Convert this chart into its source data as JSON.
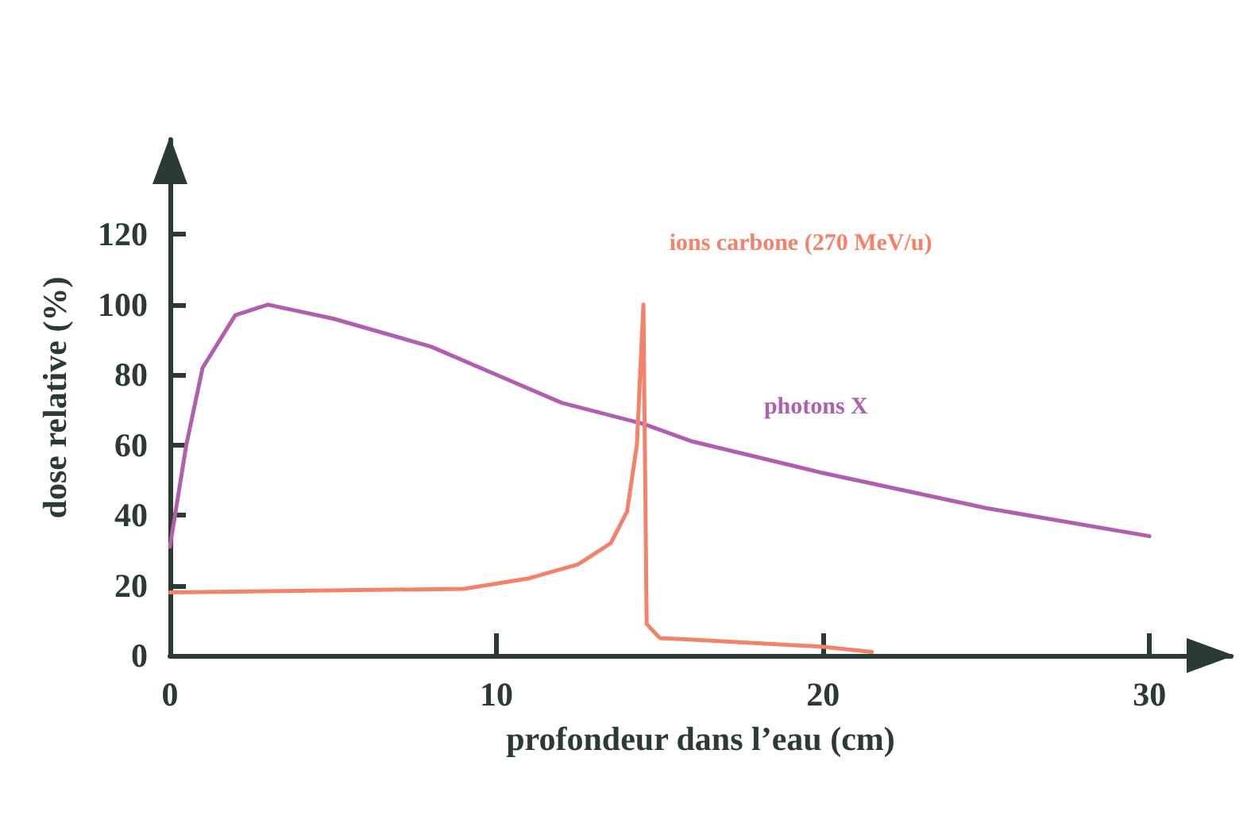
{
  "chart_data": {
    "type": "line",
    "xlabel": "profondeur dans l’eau (cm)",
    "ylabel": "dose relative (%)",
    "xlim": [
      0,
      32.5
    ],
    "xticks": [
      0,
      10,
      20,
      30
    ],
    "ylim": [
      0,
      147
    ],
    "yticks": [
      0,
      20,
      40,
      60,
      80,
      100,
      120
    ],
    "grid": false,
    "legend": false,
    "marker": "none",
    "line_style": "solid",
    "series": [
      {
        "name": "photons X",
        "color": "#b05fb0",
        "x": [
          0,
          0.5,
          1,
          2,
          3,
          5,
          8,
          10,
          12,
          14.5,
          16,
          20,
          25,
          30
        ],
        "values": [
          31,
          60,
          82,
          97,
          100,
          96,
          88,
          80,
          72,
          66,
          61,
          52,
          42,
          34
        ]
      },
      {
        "name": "ions carbone (270 MeV/u)",
        "color": "#f4826a",
        "x": [
          0,
          9,
          11,
          12.5,
          13.5,
          14,
          14.3,
          14.5,
          14.6,
          15,
          16,
          20,
          21.5
        ],
        "values": [
          18,
          19,
          22,
          26,
          32,
          41,
          60,
          100,
          9,
          5,
          4.5,
          2.5,
          1
        ]
      }
    ]
  }
}
